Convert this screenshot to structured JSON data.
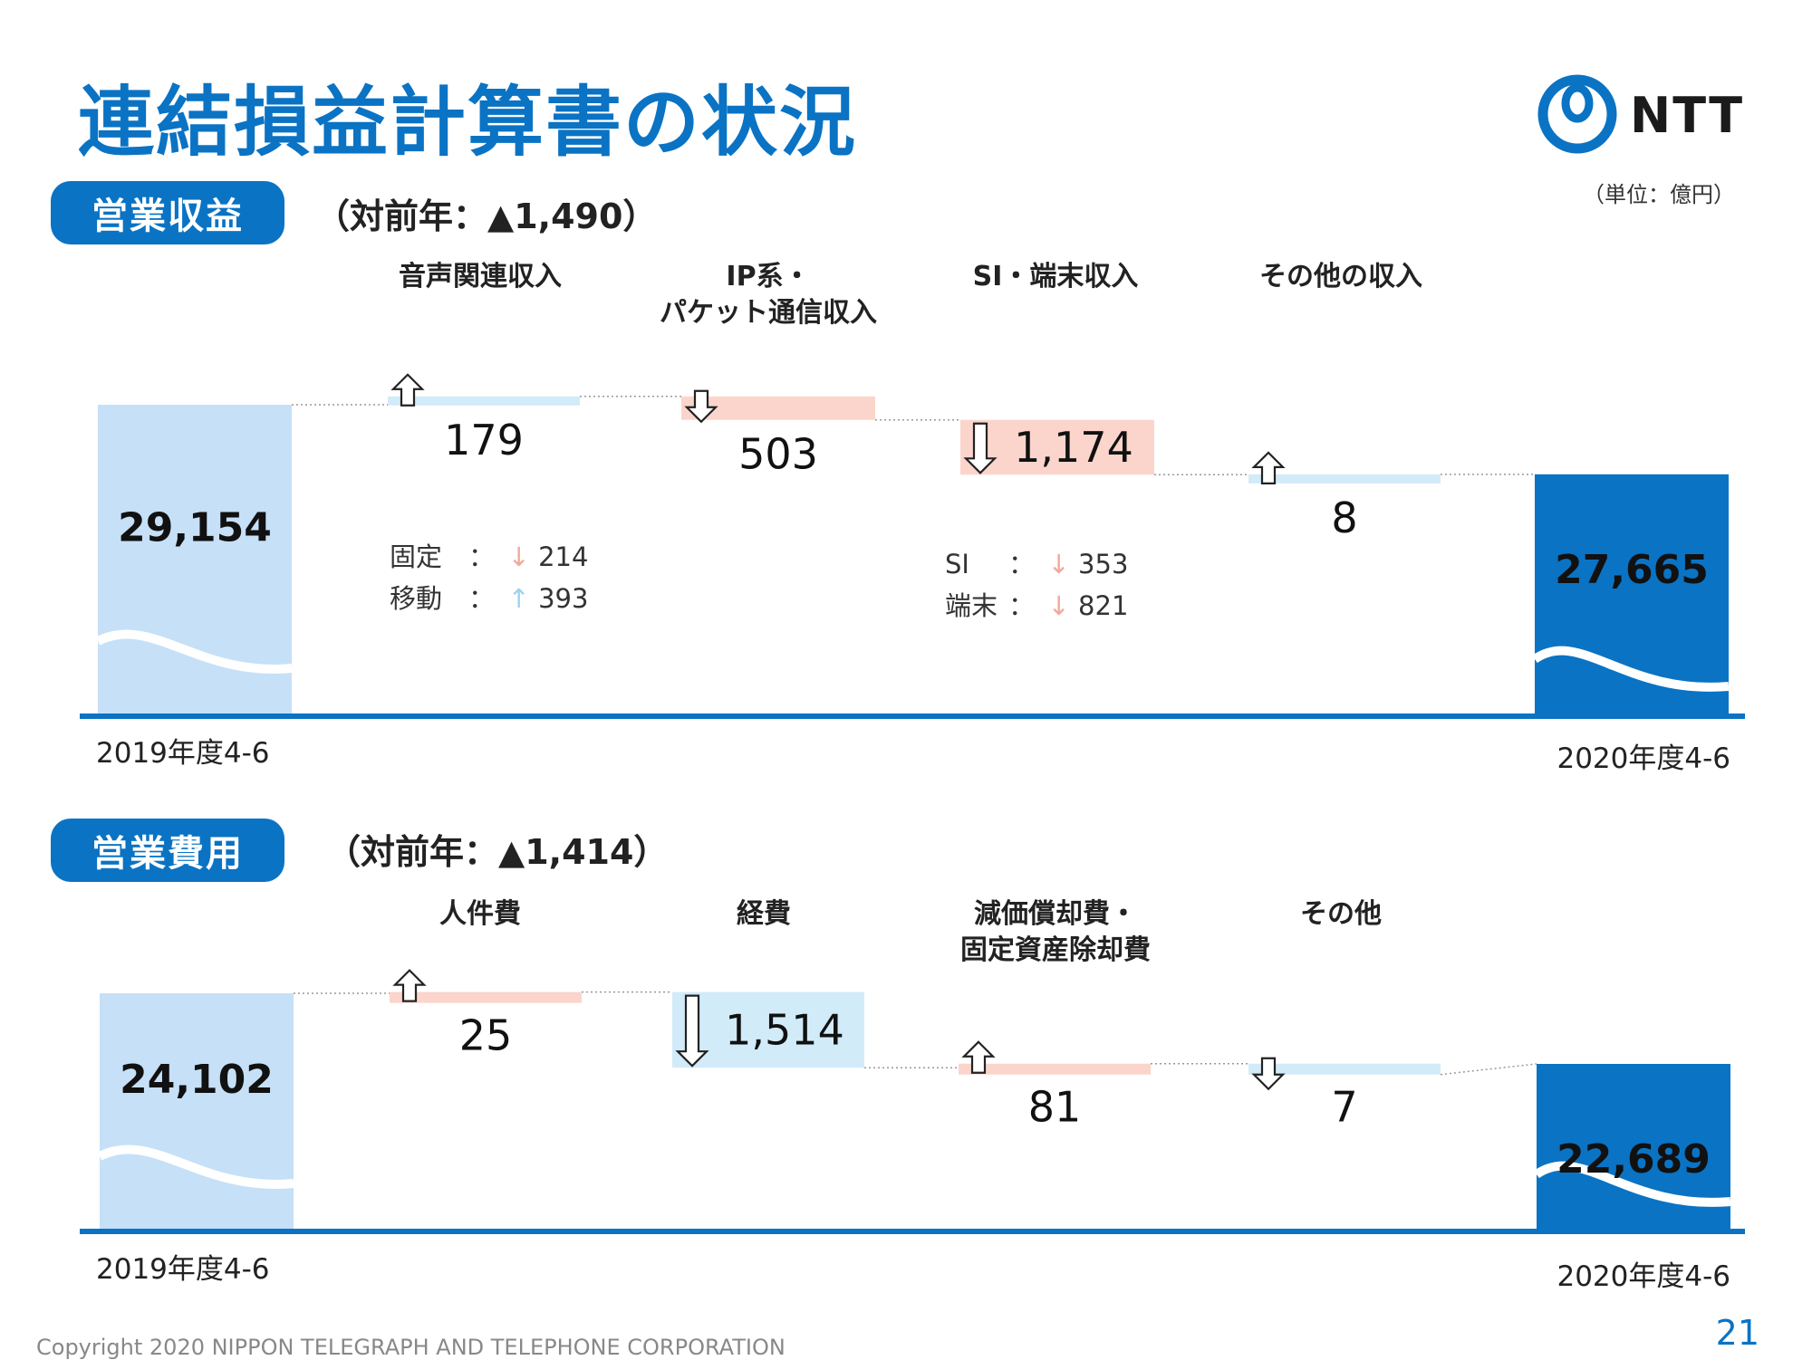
{
  "title": "連結損益計算書の状況",
  "unit": "（単位：億円）",
  "logo": {
    "text": "NTT"
  },
  "footer": "Copyright 2020 NIPPON TELEGRAPH AND TELEPHONE CORPORATION",
  "page_number": "21",
  "colors": {
    "accent": "#0a73c4",
    "light_blue": "#c6e0f7",
    "increase": "#d2ebf9",
    "decrease": "#fbd5cb"
  },
  "sections": [
    {
      "label": "営業収益",
      "yoy": "（対前年：▲1,490）",
      "start_caption": "2019年度4-6",
      "end_caption": "2020年度4-6",
      "categories": [
        "音声関連収入",
        "IP系・\nパケット通信収入",
        "SI・端末収入",
        "その他の収入"
      ],
      "details": [
        {
          "category": "音声関連収入",
          "lines": [
            {
              "label": "固定",
              "arrow": "↓",
              "direction": "down",
              "value": "214"
            },
            {
              "label": "移動",
              "arrow": "↑",
              "direction": "up",
              "value": "393"
            }
          ]
        },
        {
          "category": "SI・端末収入",
          "lines": [
            {
              "label": "SI",
              "arrow": "↓",
              "direction": "down",
              "value": "353"
            },
            {
              "label": "端末",
              "arrow": "↓",
              "direction": "down",
              "value": "821"
            }
          ]
        }
      ]
    },
    {
      "label": "営業費用",
      "yoy": "（対前年：▲1,414）",
      "start_caption": "2019年度4-6",
      "end_caption": "2020年度4-6",
      "categories": [
        "人件費",
        "経費",
        "減価償却費・\n固定資産除却費",
        "その他"
      ],
      "details": []
    }
  ],
  "chart_data": [
    {
      "type": "bar",
      "title": "営業収益",
      "start": {
        "label": "2019年度4-6",
        "value": 29154,
        "display": "29,154"
      },
      "end": {
        "label": "2020年度4-6",
        "value": 27665,
        "display": "27,665"
      },
      "changes": [
        {
          "category": "音声関連収入",
          "value": 179,
          "display": "179",
          "direction": "up"
        },
        {
          "category": "IP系・パケット通信収入",
          "value": -503,
          "display": "503",
          "direction": "down"
        },
        {
          "category": "SI・端末収入",
          "value": -1174,
          "display": "1,174",
          "direction": "down"
        },
        {
          "category": "その他の収入",
          "value": 8,
          "display": "8",
          "direction": "up"
        }
      ]
    },
    {
      "type": "bar",
      "title": "営業費用",
      "start": {
        "label": "2019年度4-6",
        "value": 24102,
        "display": "24,102"
      },
      "end": {
        "label": "2020年度4-6",
        "value": 22689,
        "display": "22,689"
      },
      "changes": [
        {
          "category": "人件費",
          "value": 25,
          "display": "25",
          "direction": "up"
        },
        {
          "category": "経費",
          "value": -1514,
          "display": "1,514",
          "direction": "down"
        },
        {
          "category": "減価償却費・固定資産除却費",
          "value": 81,
          "display": "81",
          "direction": "up"
        },
        {
          "category": "その他",
          "value": -7,
          "display": "7",
          "direction": "down"
        }
      ]
    }
  ]
}
